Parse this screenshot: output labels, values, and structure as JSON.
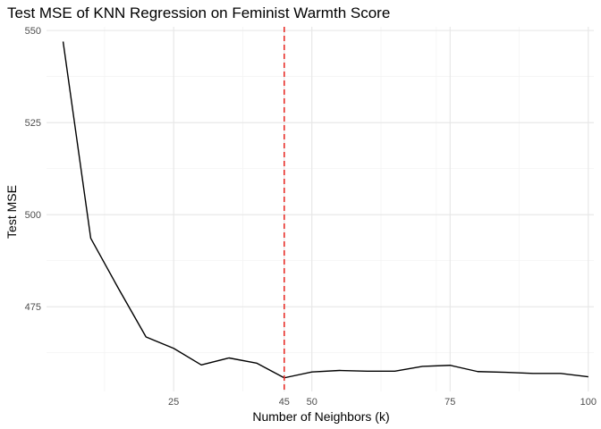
{
  "chart_data": {
    "type": "line",
    "title": "Test MSE of KNN Regression on Feminist Warmth Score",
    "xlabel": "Number of Neighbors (k)",
    "ylabel": "Test MSE",
    "xlim": [
      2,
      101
    ],
    "ylim": [
      452,
      551
    ],
    "x_ticks": [
      25,
      45,
      50,
      75,
      100
    ],
    "x_tick_labels": [
      "25",
      "45",
      "50",
      "75",
      "100"
    ],
    "x_minor_grid": [
      12.5,
      37.5,
      62.5,
      72.5,
      87.5
    ],
    "y_ticks": [
      475,
      500,
      525,
      550
    ],
    "y_tick_labels": [
      "475",
      "500",
      "525",
      "550"
    ],
    "y_minor_grid": [
      462.5,
      487.5,
      512.5,
      537.5
    ],
    "grid": true,
    "series": [
      {
        "x": [
          5,
          10,
          15,
          20,
          25,
          30,
          35,
          40,
          45,
          50,
          55,
          60,
          65,
          70,
          75,
          80,
          85,
          90,
          95,
          100
        ],
        "values": [
          547,
          493.6,
          480,
          466.8,
          463.7,
          459.2,
          461.1,
          459.7,
          455.7,
          457.3,
          457.7,
          457.5,
          457.5,
          458.8,
          459.1,
          457.4,
          457.2,
          456.9,
          456.9,
          456
        ],
        "color": "#000000"
      }
    ],
    "reference_line": {
      "axis": "x",
      "value": 45,
      "color": "#e8302a",
      "style": "dashed"
    }
  }
}
